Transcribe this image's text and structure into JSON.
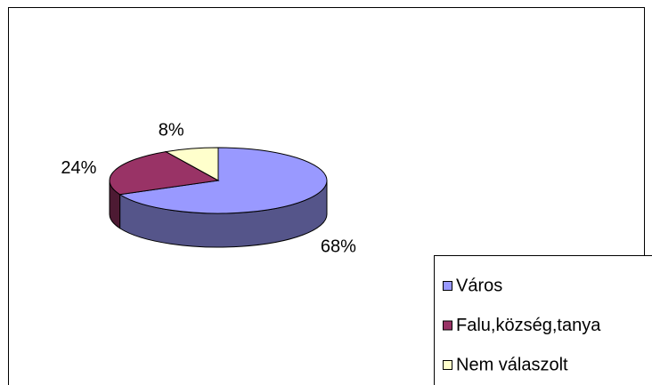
{
  "chart_data": {
    "type": "pie3d",
    "categories": [
      "Város",
      "Falu,község,tanya",
      "Nem válaszolt"
    ],
    "values": [
      68,
      24,
      8
    ],
    "value_labels": [
      "68%",
      "24%",
      "8%"
    ],
    "colors": [
      "#9999ff",
      "#993366",
      "#ffffcc"
    ],
    "side_colors": [
      "#55558a",
      "#4d1a33",
      "#80805f"
    ],
    "legend": "right"
  }
}
